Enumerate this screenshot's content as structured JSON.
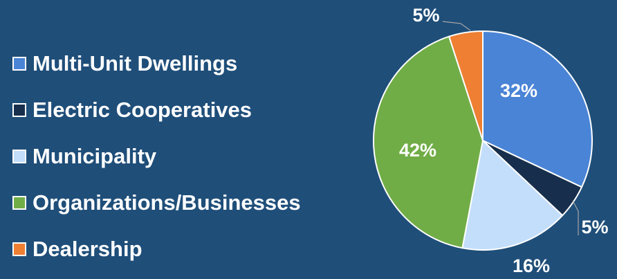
{
  "chart_data": {
    "type": "pie",
    "title": "",
    "legend_position": "left",
    "categories": [
      "Multi-Unit Dwellings",
      "Electric Cooperatives",
      "Municipality",
      "Organizations/Businesses",
      "Dealership"
    ],
    "values": [
      32,
      5,
      16,
      42,
      5
    ],
    "labels": [
      "32%",
      "5%",
      "16%",
      "42%",
      "5%"
    ],
    "colors": [
      "#4a84d6",
      "#172f4c",
      "#c3defa",
      "#71ad47",
      "#ee7f33"
    ]
  },
  "background_color": "#1f4e79"
}
